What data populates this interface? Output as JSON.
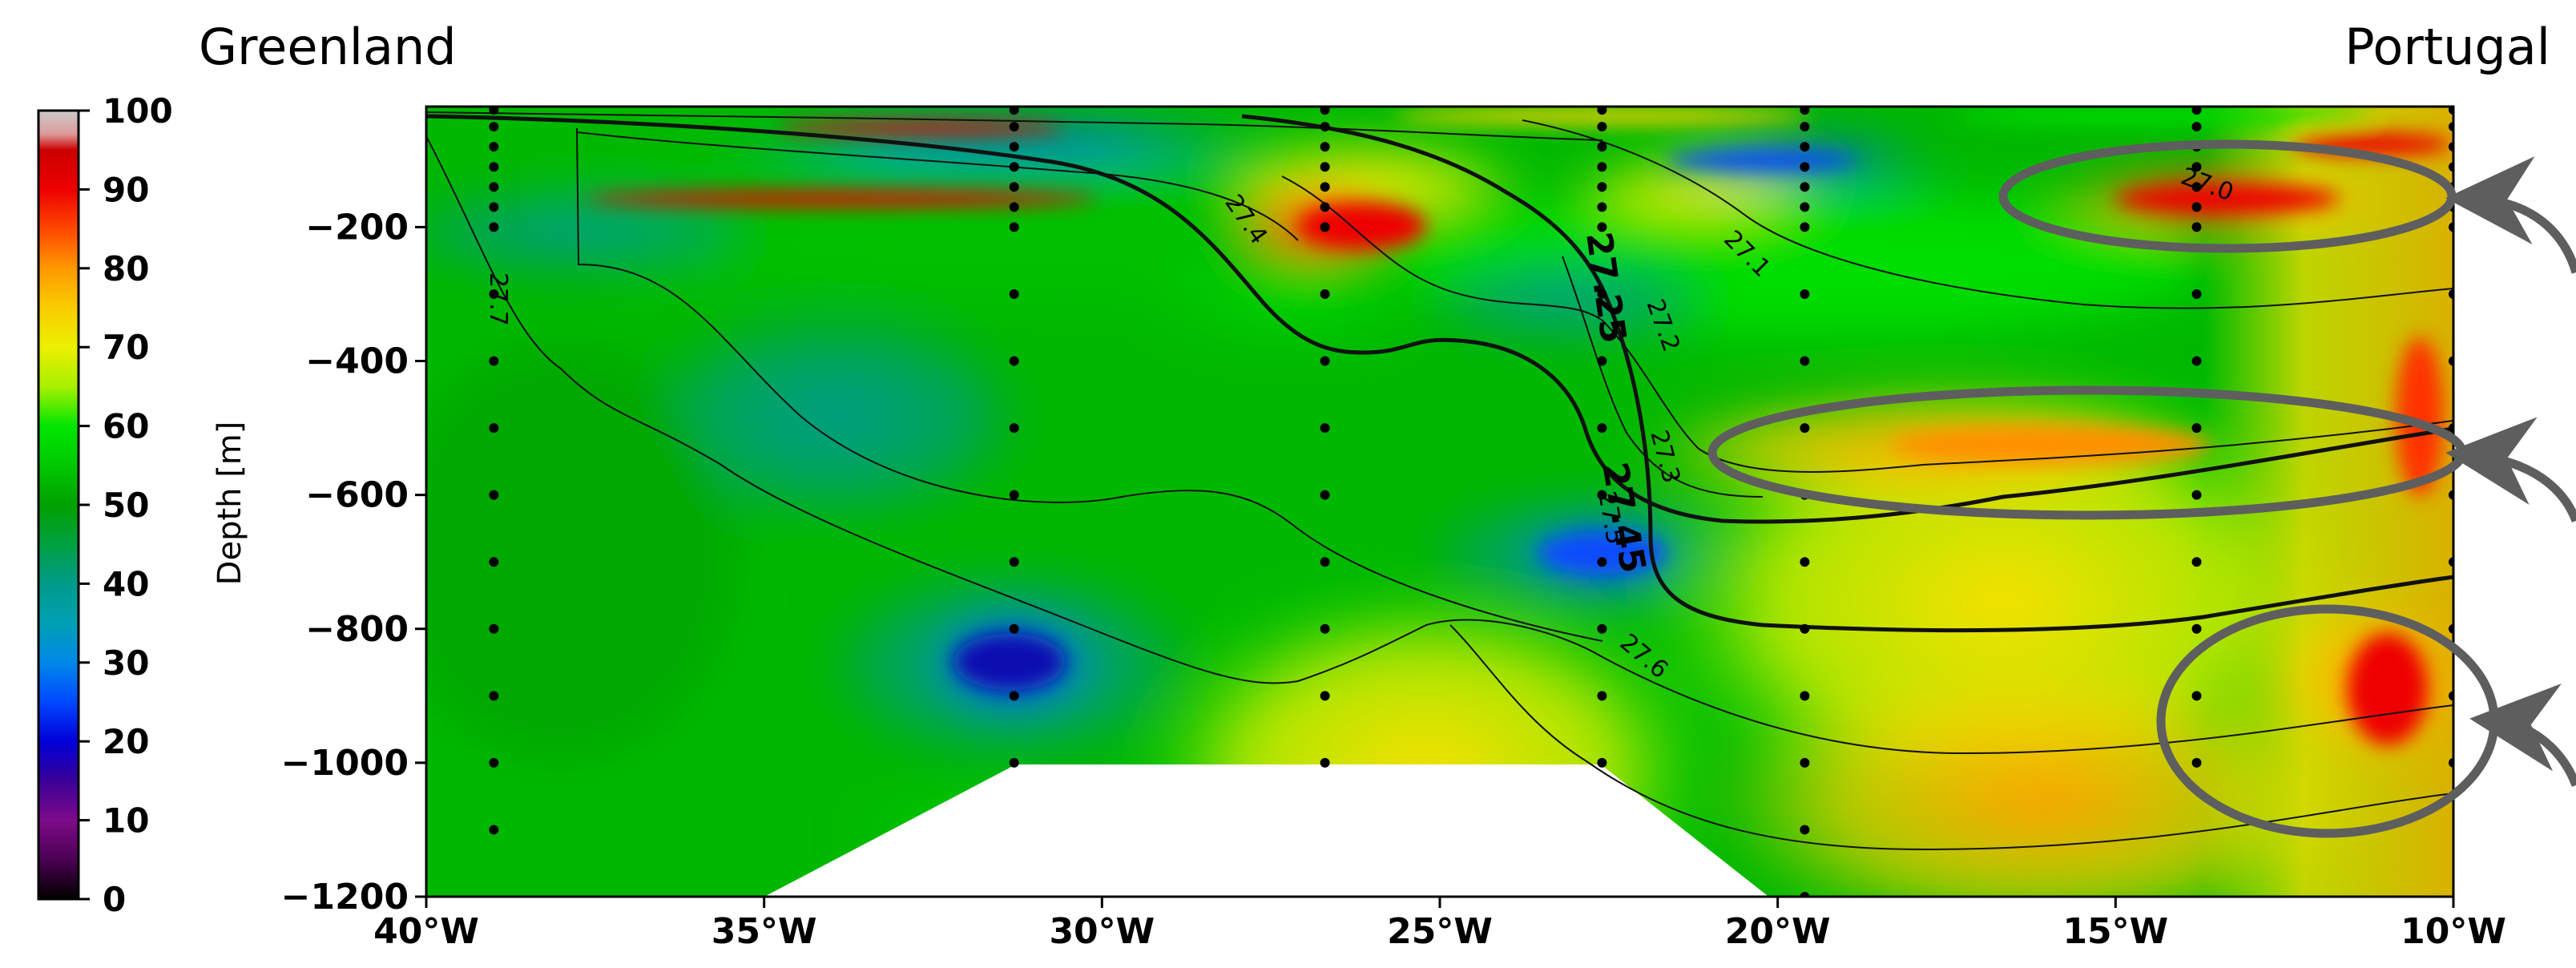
{
  "labels": {
    "left_region": "Greenland",
    "right_region": "Portugal"
  },
  "colorbar": {
    "ticks": [
      "100",
      "90",
      "80",
      "70",
      "60",
      "50",
      "40",
      "30",
      "20",
      "10",
      "0"
    ],
    "min": 0,
    "max": 100
  },
  "chart_data": {
    "type": "heatmap",
    "title": "",
    "xlabel": "",
    "ylabel": "Depth [m]",
    "xlim": [
      -40,
      -10
    ],
    "ylim": [
      -1200,
      -20
    ],
    "x_ticks": [
      "40°W",
      "35°W",
      "30°W",
      "25°W",
      "20°W",
      "15°W",
      "10°W"
    ],
    "y_ticks": [
      "−200",
      "−400",
      "−600",
      "−800",
      "−1000",
      "−1200"
    ],
    "stations": [
      {
        "lon": -39.0,
        "max_depth": -1100
      },
      {
        "lon": -31.3,
        "max_depth": -1000
      },
      {
        "lon": -26.7,
        "max_depth": -1000
      },
      {
        "lon": -22.6,
        "max_depth": -1000
      },
      {
        "lon": -19.6,
        "max_depth": -1200
      },
      {
        "lon": -13.8,
        "max_depth": -1000
      },
      {
        "lon": -10.0,
        "max_depth": -1000
      }
    ],
    "isopycnals": [
      {
        "label": "27.0",
        "bold": false
      },
      {
        "label": "27.1",
        "bold": false
      },
      {
        "label": "27.2",
        "bold": false
      },
      {
        "label": "27.25",
        "bold": true
      },
      {
        "label": "27.3",
        "bold": false
      },
      {
        "label": "27.4",
        "bold": false
      },
      {
        "label": "27.45",
        "bold": true
      },
      {
        "label": "27.5",
        "bold": false
      },
      {
        "label": "27.6",
        "bold": false
      },
      {
        "label": "27.7",
        "bold": false
      }
    ],
    "highlights": [
      {
        "name": "upper-high-region",
        "lon": -13.5,
        "depth": -150
      },
      {
        "name": "intermediate-high-region",
        "lon": -15.5,
        "depth": -560
      },
      {
        "name": "deep-high-region",
        "lon": -11.5,
        "depth": -920
      }
    ]
  }
}
